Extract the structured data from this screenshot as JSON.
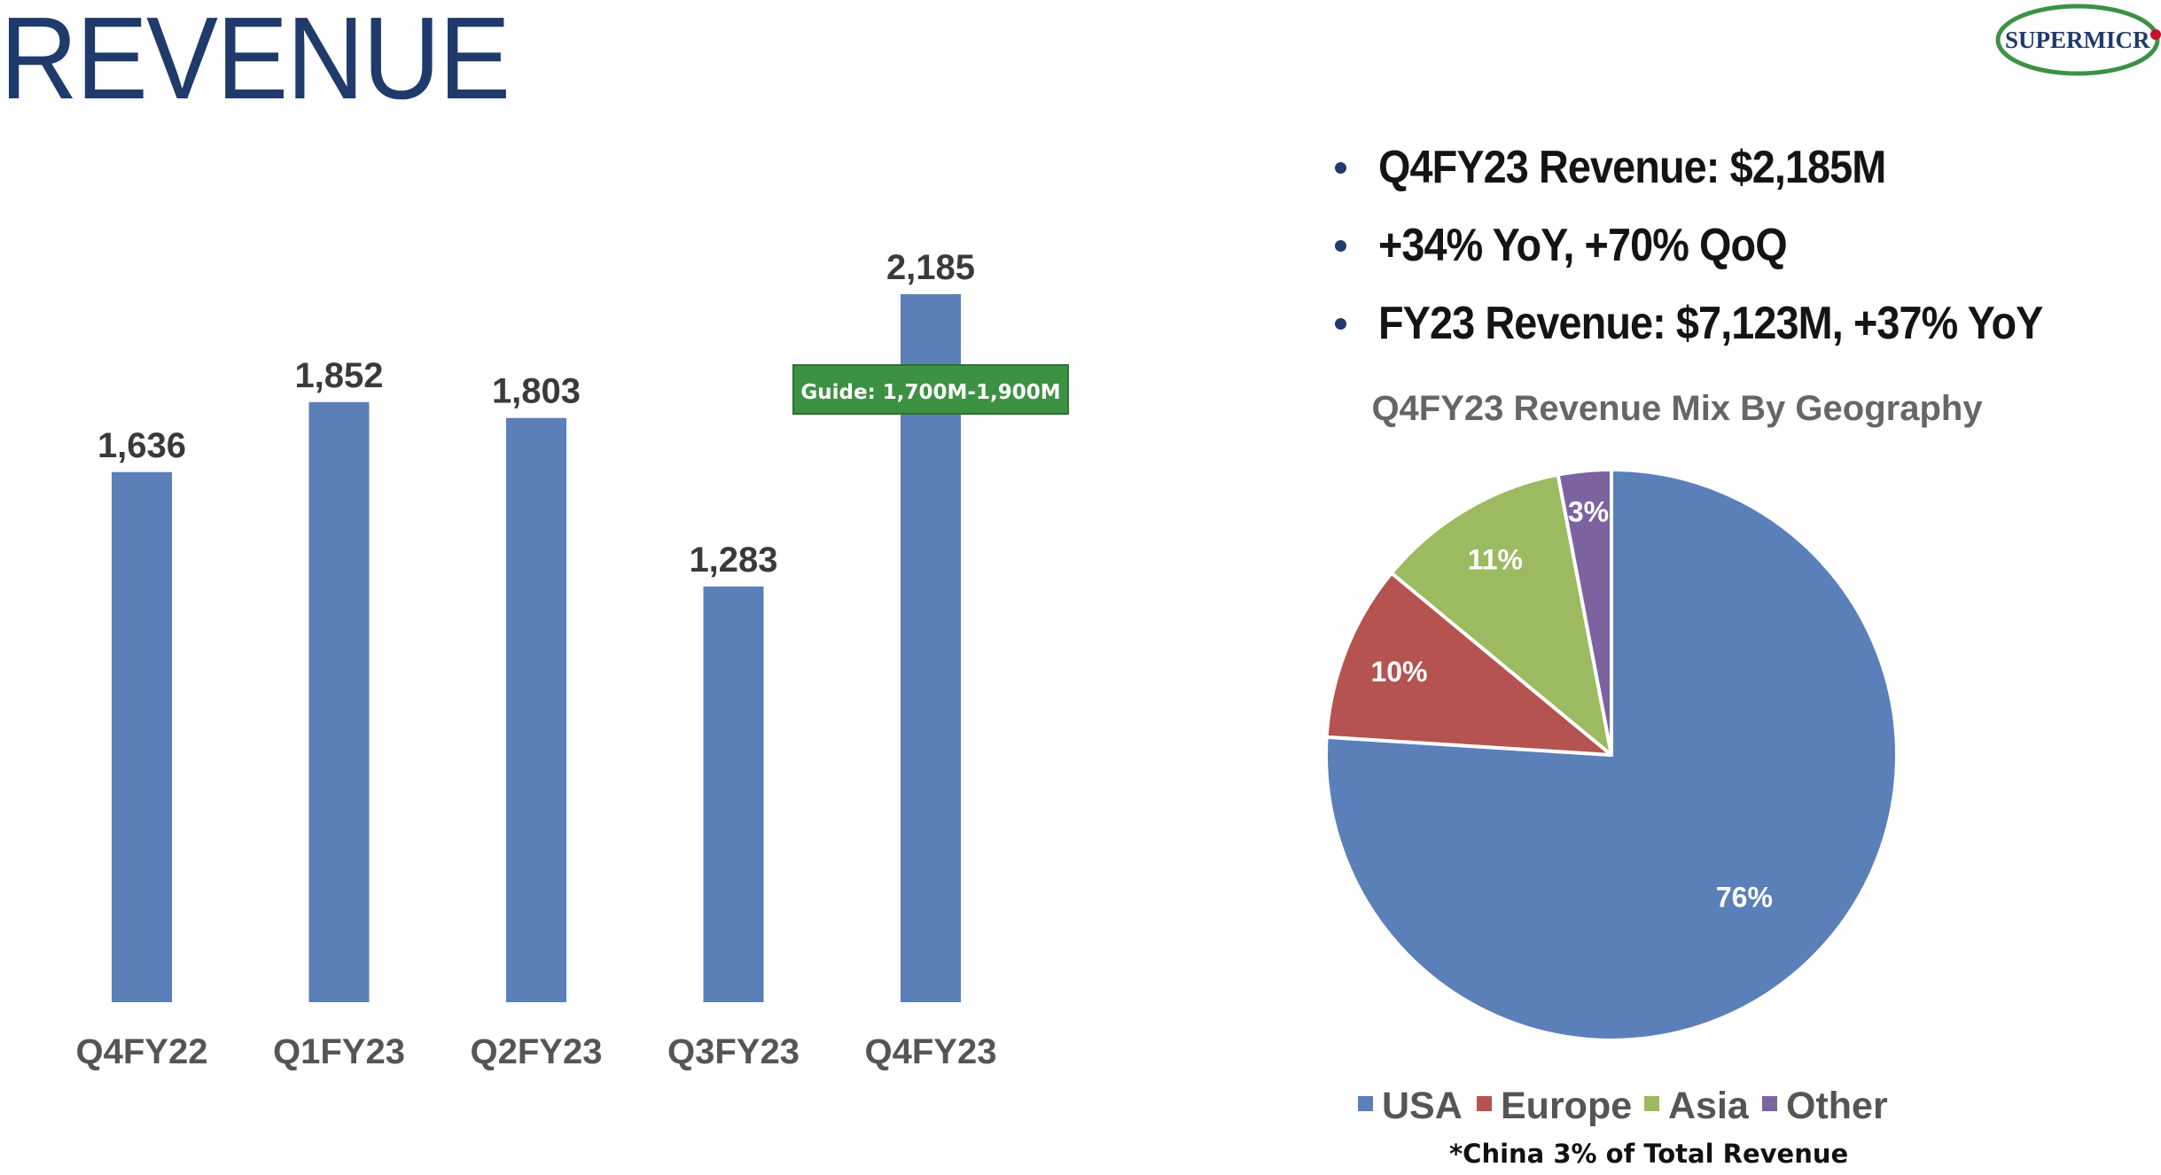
{
  "slide": {
    "title": "REVENUE",
    "logo_text": "SUPERMICR",
    "bullets": [
      "Q4FY23 Revenue: $2,185M",
      "+34% YoY, +70% QoQ",
      "FY23 Revenue: $7,123M, +37% YoY"
    ],
    "footnote": "*China 3% of Total Revenue"
  },
  "colors": {
    "title": "#1f3a6b",
    "bar": "#5b7fb8",
    "guide_box": "#3d9143",
    "usa": "#5b7fb8",
    "europe": "#b4534f",
    "asia": "#9cba5f",
    "other": "#7c63a0"
  },
  "icons": {
    "bullet": "bullet-dot-icon"
  },
  "chart_data": [
    {
      "type": "bar",
      "categories": [
        "Q4FY22",
        "Q1FY23",
        "Q2FY23",
        "Q3FY23",
        "Q4FY23"
      ],
      "values": [
        1636,
        1852,
        1803,
        1283,
        2185
      ],
      "data_labels": [
        "1,636",
        "1,852",
        "1,803",
        "1,283",
        "2,185"
      ],
      "title": "",
      "xlabel": "",
      "ylabel": "",
      "ylim": [
        0,
        2185
      ],
      "grid": false,
      "annotations": [
        {
          "category": "Q4FY23",
          "text": "Guide: 1,700M-1,900M"
        }
      ]
    },
    {
      "type": "pie",
      "title": "Q4FY23 Revenue Mix By Geography",
      "labels": [
        "USA",
        "Europe",
        "Asia",
        "Other"
      ],
      "values": [
        76,
        10,
        11,
        3
      ],
      "value_labels": [
        "76%",
        "10%",
        "11%",
        "3%"
      ],
      "legend_placement": "bottom"
    }
  ]
}
